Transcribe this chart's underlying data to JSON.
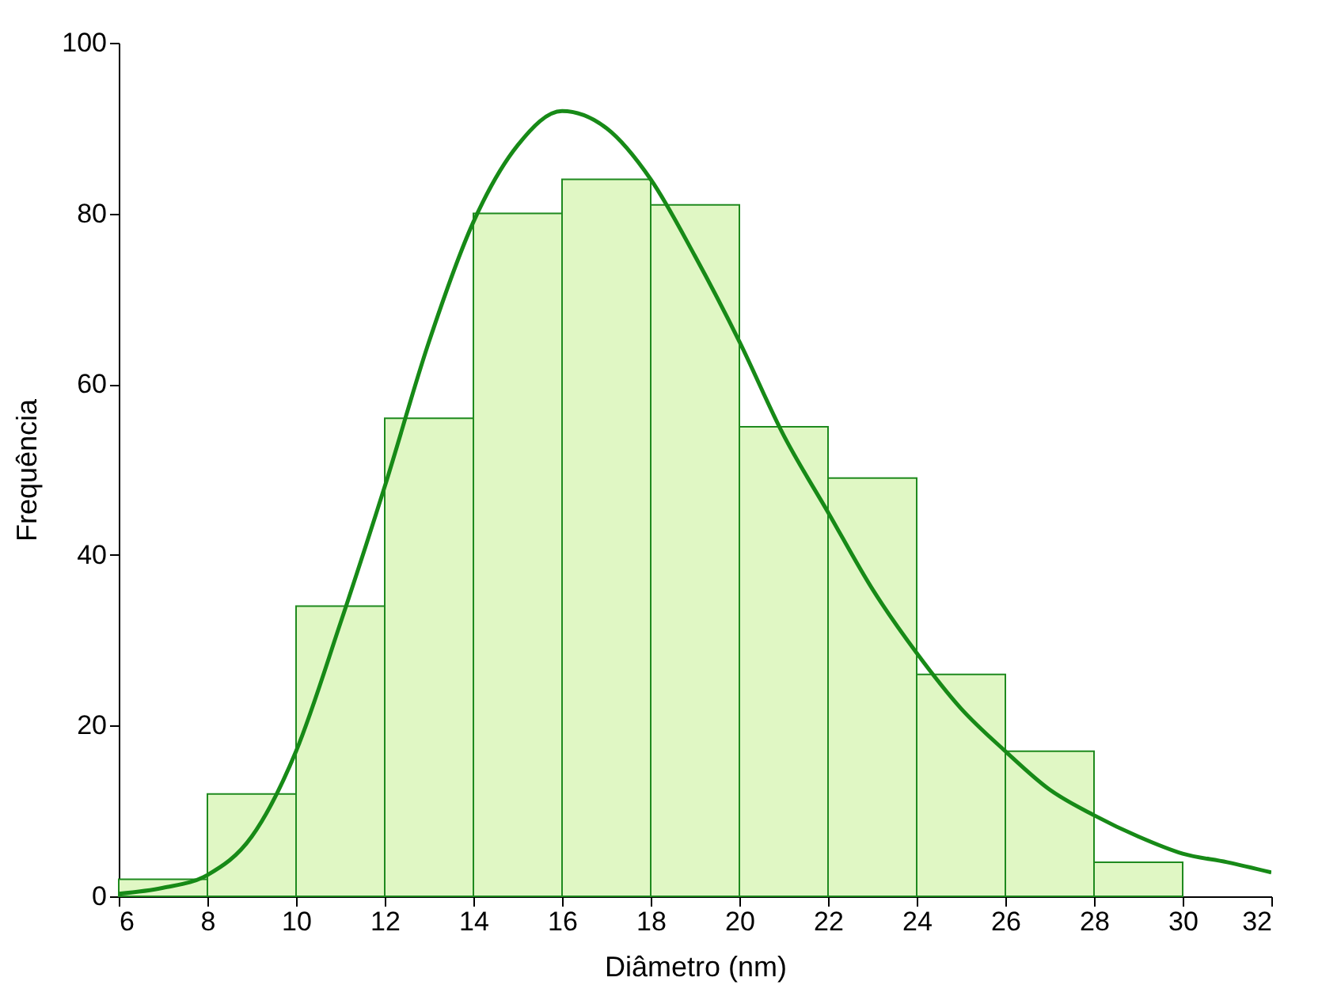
{
  "chart_data": {
    "type": "histogram",
    "xlabel": "Diâmetro (nm)",
    "ylabel": "Frequência",
    "bins": [
      6,
      8,
      10,
      12,
      14,
      16,
      18,
      20,
      22,
      24,
      26,
      28,
      30
    ],
    "values": [
      2,
      12,
      34,
      56,
      80,
      84,
      81,
      55,
      49,
      26,
      17,
      4
    ],
    "color": "#e0f7c4",
    "series": [
      {
        "type": "line",
        "color": "#178a17",
        "x": [
          6,
          7,
          8,
          9,
          10,
          11,
          12,
          13,
          14,
          15,
          16,
          17,
          18,
          19,
          20,
          21,
          22,
          23,
          24,
          25,
          26,
          27,
          28,
          29,
          30,
          31,
          32
        ],
        "values": [
          0.3,
          1,
          2.5,
          7,
          17,
          32,
          48,
          65,
          79,
          88,
          92,
          90,
          84,
          75,
          65,
          54,
          45,
          36,
          28.5,
          22,
          17,
          12.5,
          9.5,
          7,
          5,
          4,
          2.8
        ]
      }
    ],
    "xlim": [
      6,
      32
    ],
    "xticks": [
      6,
      8,
      10,
      12,
      14,
      16,
      18,
      20,
      22,
      24,
      26,
      28,
      30,
      32
    ],
    "ylim": [
      0,
      100
    ],
    "yticks": [
      0,
      20,
      40,
      60,
      80,
      100
    ],
    "grid": false
  }
}
